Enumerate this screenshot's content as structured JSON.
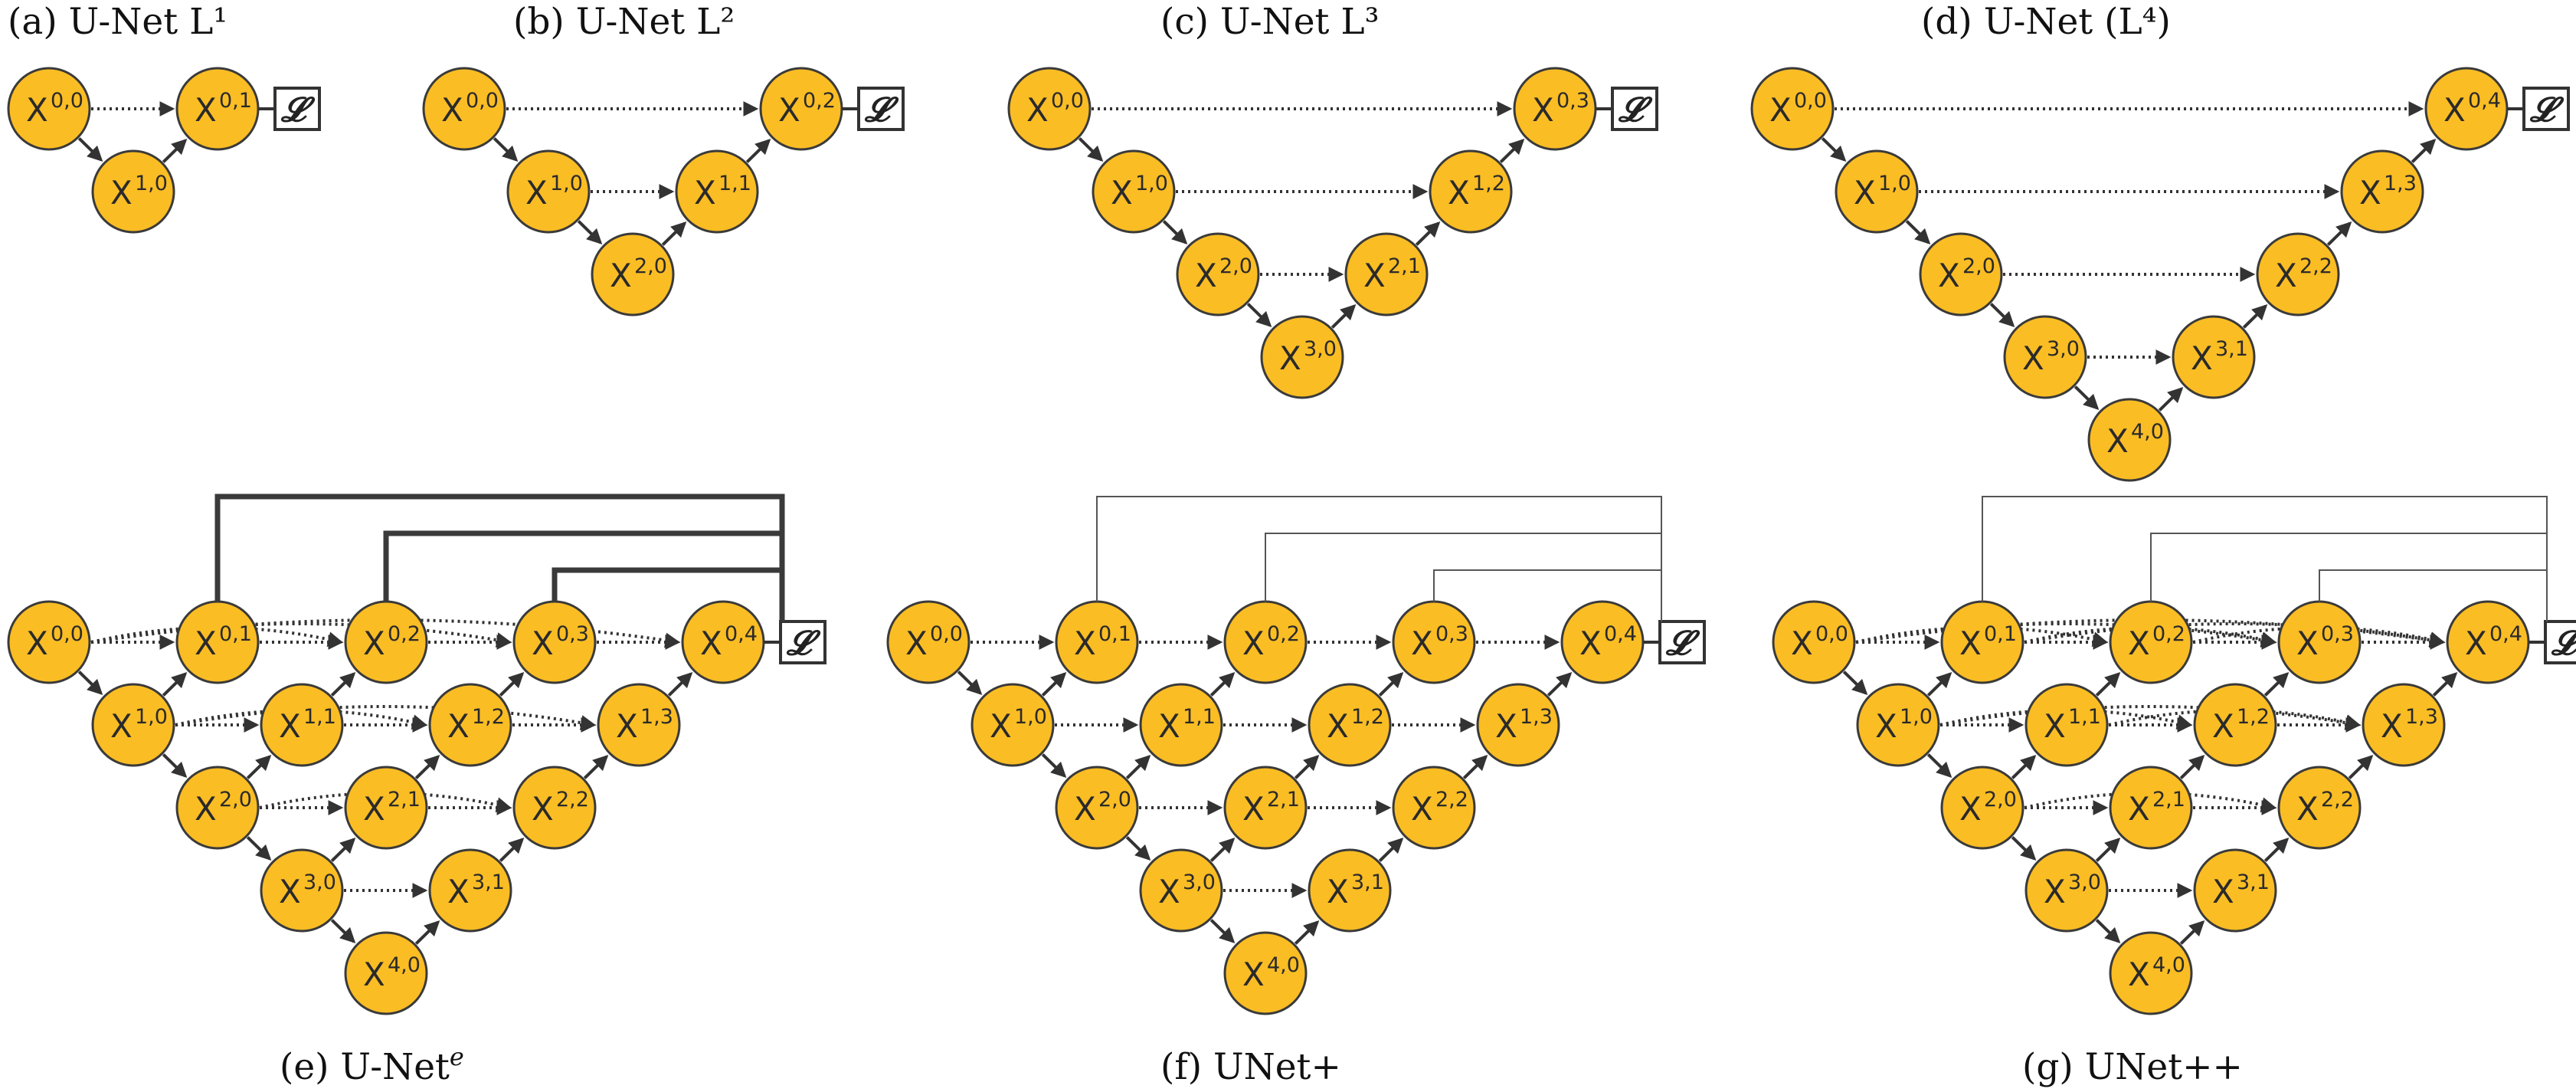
{
  "captions": {
    "a": "(a) U-Net L¹",
    "b": "(b) U-Net L²",
    "c": "(c) U-Net L³",
    "d": "(d) U-Net (L⁴)",
    "e_main": "(e) U-Net",
    "e_sup": "e",
    "f": "(f) UNet+",
    "g": "(g) UNet++"
  },
  "loss_symbol": "𝓛",
  "node_label_base": "X",
  "colors": {
    "node_fill": "#FBBD24",
    "stroke": "#333333",
    "background": "#ffffff"
  },
  "panels": [
    {
      "id": "a",
      "depth": 1,
      "type": "unet"
    },
    {
      "id": "b",
      "depth": 2,
      "type": "unet"
    },
    {
      "id": "c",
      "depth": 3,
      "type": "unet"
    },
    {
      "id": "d",
      "depth": 4,
      "type": "unet"
    },
    {
      "id": "e",
      "depth": 4,
      "type": "unet-e",
      "deep_supervision": "thick"
    },
    {
      "id": "f",
      "depth": 4,
      "type": "unet-plus",
      "deep_supervision": "thin"
    },
    {
      "id": "g",
      "depth": 4,
      "type": "unet-plusplus",
      "deep_supervision": "thin"
    }
  ]
}
